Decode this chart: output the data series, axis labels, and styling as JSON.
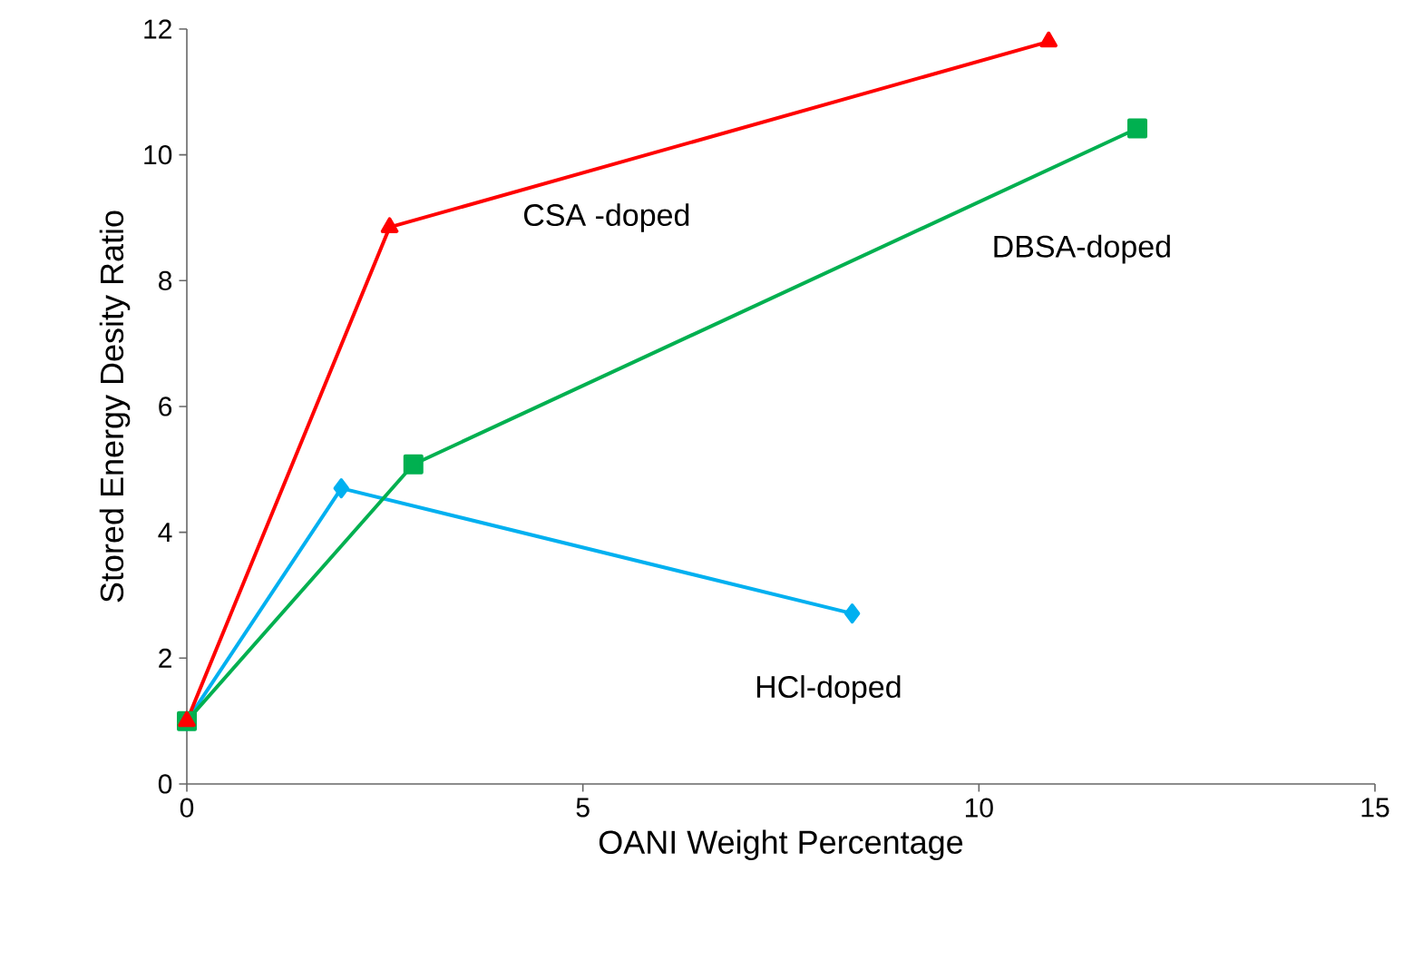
{
  "chart_data": {
    "type": "line",
    "xlabel": "OANI Weight Percentage",
    "ylabel": "Stored Energy Desity  Ratio",
    "xlim": [
      0,
      15
    ],
    "xticks": [
      0,
      5,
      10,
      15
    ],
    "ylim": [
      0,
      12
    ],
    "yticks": [
      0,
      2,
      4,
      6,
      8,
      10,
      12
    ],
    "grid": false,
    "legend": false,
    "series": [
      {
        "name": "CSA -doped",
        "color": "#ff0000",
        "marker": "triangle",
        "x": [
          0,
          2.56,
          10.88
        ],
        "values": [
          1.0,
          8.85,
          11.8
        ]
      },
      {
        "name": "DBSA-doped",
        "color": "#00b050",
        "marker": "square",
        "x": [
          0,
          2.86,
          12.0
        ],
        "values": [
          1.0,
          5.08,
          10.42
        ]
      },
      {
        "name": "HCl-doped",
        "color": "#00b0f0",
        "marker": "diamond",
        "x": [
          0,
          1.95,
          8.4
        ],
        "values": [
          1.0,
          4.7,
          2.71
        ]
      }
    ]
  }
}
